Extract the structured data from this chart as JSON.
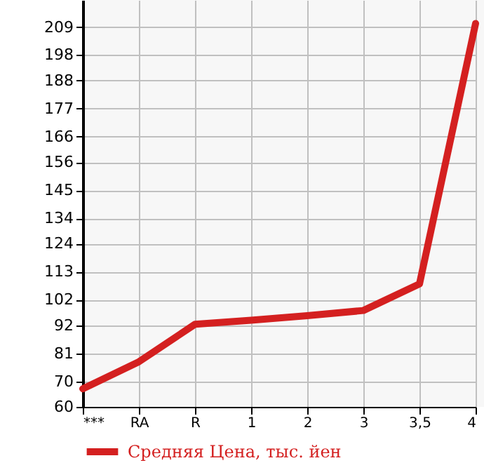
{
  "chart_data": {
    "type": "line",
    "categories": [
      "***",
      "RA",
      "R",
      "1",
      "2",
      "3",
      "3,5",
      "4"
    ],
    "series": [
      {
        "name": "Средняя Цена, тыс. йен",
        "color": "#d42020",
        "values": [
          67.1,
          77.7,
          92.4,
          94.0,
          95.8,
          97.8,
          108.2,
          210.4
        ]
      }
    ],
    "ylim": [
      60,
      219.6
    ],
    "yticks": [
      60,
      70,
      81,
      92,
      102,
      113,
      124,
      134,
      145,
      156,
      166,
      177,
      188,
      198,
      209
    ],
    "grid": true,
    "legend": "bottom",
    "marker": "none",
    "line_style": "solid"
  }
}
